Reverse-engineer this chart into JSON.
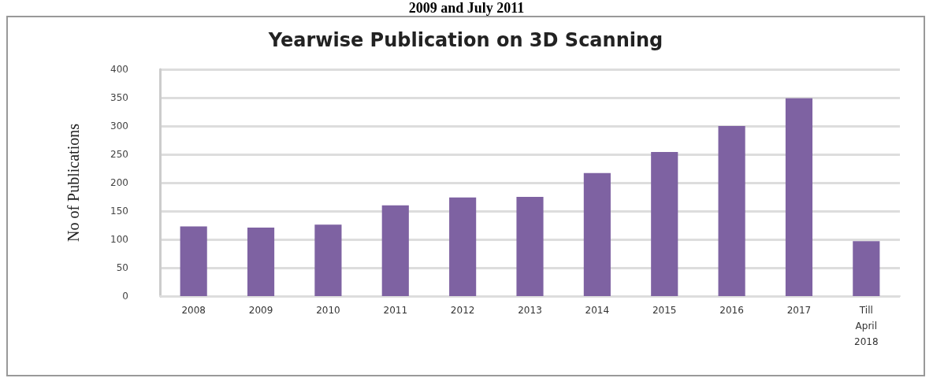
{
  "chart_data": {
    "type": "bar",
    "title": "Yearwise Publication on 3D Scanning",
    "ylabel": "No of Publications",
    "annotations": [
      "2009 and July 2011"
    ],
    "categories": [
      "2008",
      "2009",
      "2010",
      "2011",
      "2012",
      "2013",
      "2014",
      "2015",
      "2016",
      "2017",
      "Till\nApril\n2018"
    ],
    "values": [
      123,
      121,
      126,
      160,
      174,
      175,
      217,
      254,
      300,
      349,
      97
    ],
    "color": "#7e62a2",
    "ylim": [
      0,
      400
    ],
    "yticks": [
      0,
      50,
      100,
      150,
      200,
      250,
      300,
      350,
      400
    ],
    "grid": "y"
  }
}
